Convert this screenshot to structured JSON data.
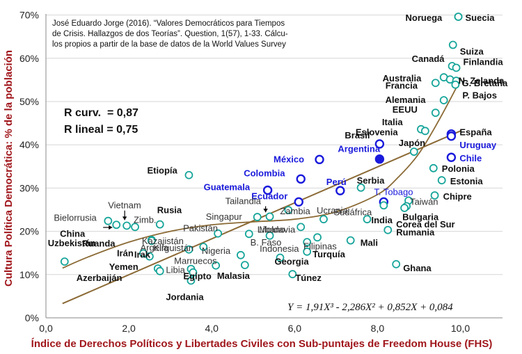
{
  "chart_data": {
    "type": "scatter",
    "xlabel": "Índice de Derechos Políticos y Libertades Civiles con Sub-puntajes de Freedom House (FHS)",
    "ylabel": "Cultura Política Democrática: % de la población",
    "xlim": [
      0,
      11
    ],
    "ylim": [
      0,
      70
    ],
    "x_ticks": [
      "0,0",
      "2,0",
      "4,0",
      "6,0",
      "8,0",
      "10,0"
    ],
    "y_ticks": [
      "0%",
      "10%",
      "20%",
      "30%",
      "40%",
      "50%",
      "60%",
      "70%"
    ],
    "source_lines": [
      "José Eduardo Jorge (2016). “Valores Democráticos para Tiempos",
      "de Crisis. Hallazgos de dos Teorías”. Question, 1(57), 1-33. Cálcu-",
      "los propios a partir de la base de datos de la World Values Survey"
    ],
    "stats": [
      "R curv.  = 0,87",
      "R lineal = 0,75"
    ],
    "equation": "Y = 1,91X³ - 2,286X² + 0,852X + 0,084",
    "colors": {
      "axis_title": "#a0171c",
      "teal": "#17a59a",
      "blue": "#1a1adc",
      "trend": "#8b6a35",
      "text": "#111111"
    },
    "points": [
      {
        "label": "Noruega",
        "x": 9.95,
        "y": 69.6,
        "group": "teal"
      },
      {
        "label": "Suecia",
        "x": 9.95,
        "y": 69.6,
        "group": "teal"
      },
      {
        "label": "Suiza",
        "x": 9.82,
        "y": 63.1,
        "group": "teal"
      },
      {
        "label": "Canadá",
        "x": 9.8,
        "y": 58.2,
        "group": "teal"
      },
      {
        "label": "Finlandia",
        "x": 9.9,
        "y": 57.8,
        "group": "teal"
      },
      {
        "label": "Australia",
        "x": 9.6,
        "y": 55.6,
        "group": "teal"
      },
      {
        "label": "N. Zelanda",
        "x": 9.75,
        "y": 55.1,
        "group": "teal"
      },
      {
        "label": "G. Bretaña",
        "x": 9.9,
        "y": 54.8,
        "group": "teal"
      },
      {
        "label": "Francia",
        "x": 9.4,
        "y": 54.3,
        "group": "teal"
      },
      {
        "label": "P. Bajos",
        "x": 9.88,
        "y": 53.9,
        "group": "teal"
      },
      {
        "label": "Alemania",
        "x": 9.6,
        "y": 50.3,
        "group": "teal"
      },
      {
        "label": "EEUU",
        "x": 9.4,
        "y": 47.4,
        "group": "teal"
      },
      {
        "label": "Italia",
        "x": 9.05,
        "y": 43.6,
        "group": "teal"
      },
      {
        "label": "Eslovenia",
        "x": 9.15,
        "y": 43.2,
        "group": "teal"
      },
      {
        "label": "España",
        "x": 9.78,
        "y": 42.5,
        "group": "blue"
      },
      {
        "label": "Uruguay",
        "x": 9.78,
        "y": 42.0,
        "group": "blue"
      },
      {
        "label": "Brasil",
        "x": 8.05,
        "y": 40.2,
        "group": "blue"
      },
      {
        "label": "Japón",
        "x": 8.88,
        "y": 38.4,
        "group": "teal"
      },
      {
        "label": "Chile",
        "x": 9.78,
        "y": 37.1,
        "group": "blue"
      },
      {
        "label": "Argentina",
        "x": 8.05,
        "y": 36.7,
        "group": "blue-filled"
      },
      {
        "label": "México",
        "x": 6.6,
        "y": 36.6,
        "group": "blue"
      },
      {
        "label": "Polonia",
        "x": 9.35,
        "y": 34.6,
        "group": "teal"
      },
      {
        "label": "Etiopía",
        "x": 3.45,
        "y": 33.0,
        "group": "teal"
      },
      {
        "label": "Estonia",
        "x": 9.55,
        "y": 31.8,
        "group": "teal"
      },
      {
        "label": "Colombia",
        "x": 6.15,
        "y": 32.1,
        "group": "blue"
      },
      {
        "label": "Serbia",
        "x": 7.6,
        "y": 30.1,
        "group": "teal"
      },
      {
        "label": "Guatemala",
        "x": 5.35,
        "y": 29.5,
        "group": "blue"
      },
      {
        "label": "Perú",
        "x": 7.1,
        "y": 29.4,
        "group": "blue"
      },
      {
        "label": "Chipre",
        "x": 9.38,
        "y": 28.3,
        "group": "teal"
      },
      {
        "label": "Taiwán",
        "x": 8.75,
        "y": 27.1,
        "group": "teal"
      },
      {
        "label": "T. Tobago",
        "x": 8.15,
        "y": 26.8,
        "group": "blue"
      },
      {
        "label": "Ecuador",
        "x": 6.1,
        "y": 26.8,
        "group": "blue"
      },
      {
        "label": "Sudáfrica",
        "x": 8.15,
        "y": 26.0,
        "group": "teal"
      },
      {
        "label": "Bulgaria",
        "x": 8.7,
        "y": 25.8,
        "group": "teal"
      },
      {
        "label": "Corea del Sur",
        "x": 8.65,
        "y": 25.4,
        "group": "teal"
      },
      {
        "label": "Zambia",
        "x": 5.85,
        "y": 24.9,
        "group": "teal"
      },
      {
        "label": "Tailandia",
        "x": 5.4,
        "y": 23.4,
        "group": "teal"
      },
      {
        "label": "Singapur",
        "x": 5.1,
        "y": 23.3,
        "group": "teal"
      },
      {
        "label": "Ucrania",
        "x": 6.7,
        "y": 22.8,
        "group": "teal"
      },
      {
        "label": "India",
        "x": 7.75,
        "y": 22.8,
        "group": "teal"
      },
      {
        "label": "Bielorrusia",
        "x": 1.5,
        "y": 22.4,
        "group": "teal"
      },
      {
        "label": "Vietnam",
        "x": 1.7,
        "y": 21.5,
        "group": "teal"
      },
      {
        "label": "Zimb.",
        "x": 2.15,
        "y": 21.0,
        "group": "teal"
      },
      {
        "label": "Rusia",
        "x": 2.75,
        "y": 21.6,
        "group": "teal"
      },
      {
        "label": "China",
        "x": 1.95,
        "y": 21.3,
        "group": "teal"
      },
      {
        "label": "Moldavia",
        "x": 6.15,
        "y": 21.0,
        "group": "teal"
      },
      {
        "label": "Rumania",
        "x": 8.25,
        "y": 20.3,
        "group": "teal"
      },
      {
        "label": "Pakistán",
        "x": 4.15,
        "y": 19.5,
        "group": "teal"
      },
      {
        "label": "Líbano",
        "x": 4.9,
        "y": 19.4,
        "group": "teal"
      },
      {
        "label": "B. Faso",
        "x": 5.4,
        "y": 19.0,
        "group": "teal"
      },
      {
        "label": "Filipinas",
        "x": 6.55,
        "y": 18.6,
        "group": "teal"
      },
      {
        "label": "Kazajistán",
        "x": 2.55,
        "y": 18.0,
        "group": "teal"
      },
      {
        "label": "Ruanda",
        "x": 2.55,
        "y": 17.8,
        "group": "teal"
      },
      {
        "label": "Mali",
        "x": 7.35,
        "y": 17.9,
        "group": "teal"
      },
      {
        "label": "Indonesia",
        "x": 6.3,
        "y": 17.5,
        "group": "teal"
      },
      {
        "label": "Kirguistán",
        "x": 3.8,
        "y": 16.4,
        "group": "teal"
      },
      {
        "label": "Argelia",
        "x": 3.45,
        "y": 15.8,
        "group": "teal"
      },
      {
        "label": "Irán",
        "x": 2.35,
        "y": 14.9,
        "group": "teal"
      },
      {
        "label": "Irak",
        "x": 2.5,
        "y": 14.2,
        "group": "teal"
      },
      {
        "label": "Nigeria",
        "x": 4.7,
        "y": 14.5,
        "group": "teal"
      },
      {
        "label": "Turquía",
        "x": 6.3,
        "y": 15.3,
        "group": "teal"
      },
      {
        "label": "Georgia",
        "x": 5.65,
        "y": 13.9,
        "group": "teal"
      },
      {
        "label": "Uzbekistán",
        "x": 0.45,
        "y": 13.0,
        "group": "teal"
      },
      {
        "label": "Ghana",
        "x": 8.45,
        "y": 12.4,
        "group": "teal"
      },
      {
        "label": "Marruecos",
        "x": 4.1,
        "y": 12.1,
        "group": "teal"
      },
      {
        "label": "Malasia",
        "x": 4.8,
        "y": 12.2,
        "group": "teal"
      },
      {
        "label": "Yemen",
        "x": 2.7,
        "y": 11.4,
        "group": "teal"
      },
      {
        "label": "Libia",
        "x": 3.5,
        "y": 11.3,
        "group": "teal"
      },
      {
        "label": "Azerbaiján",
        "x": 2.75,
        "y": 10.8,
        "group": "teal"
      },
      {
        "label": "Egipto",
        "x": 3.55,
        "y": 10.5,
        "group": "teal"
      },
      {
        "label": "Túnez",
        "x": 5.95,
        "y": 10.1,
        "group": "teal"
      },
      {
        "label": "Jordania",
        "x": 3.5,
        "y": 8.6,
        "group": "teal"
      }
    ],
    "linear_fit": [
      [
        0.4,
        3.3
      ],
      [
        10.0,
        43.2
      ]
    ],
    "cubic_fit": [
      [
        0.4,
        11.5
      ],
      [
        1,
        14.0
      ],
      [
        2,
        17.5
      ],
      [
        3,
        20.0
      ],
      [
        4,
        21.5
      ],
      [
        5,
        22.2
      ],
      [
        6,
        22.8
      ],
      [
        7,
        24.5
      ],
      [
        8,
        28.5
      ],
      [
        8.5,
        32.5
      ],
      [
        9,
        38.0
      ],
      [
        9.5,
        46.0
      ],
      [
        10,
        55.0
      ]
    ]
  }
}
